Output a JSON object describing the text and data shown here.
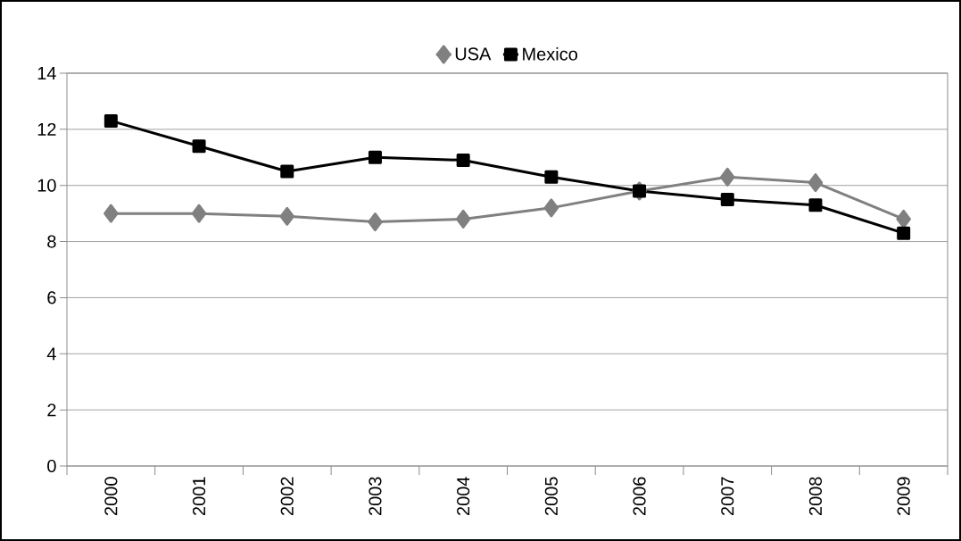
{
  "chart_data": {
    "type": "line",
    "categories": [
      "2000",
      "2001",
      "2002",
      "2003",
      "2004",
      "2005",
      "2006",
      "2007",
      "2008",
      "2009"
    ],
    "series": [
      {
        "name": "USA",
        "color": "#808080",
        "marker": "diamond",
        "values": [
          9.0,
          9.0,
          8.9,
          8.7,
          8.8,
          9.2,
          9.8,
          10.3,
          10.1,
          8.8
        ]
      },
      {
        "name": "Mexico",
        "color": "#000000",
        "marker": "square",
        "values": [
          12.3,
          11.4,
          10.5,
          11.0,
          10.9,
          10.3,
          9.8,
          9.5,
          9.3,
          8.3
        ]
      }
    ],
    "ylim": [
      0,
      14
    ],
    "yticks": [
      0,
      2,
      4,
      6,
      8,
      10,
      12,
      14
    ],
    "grid": "y",
    "legend": "top",
    "line_style": "solid"
  }
}
